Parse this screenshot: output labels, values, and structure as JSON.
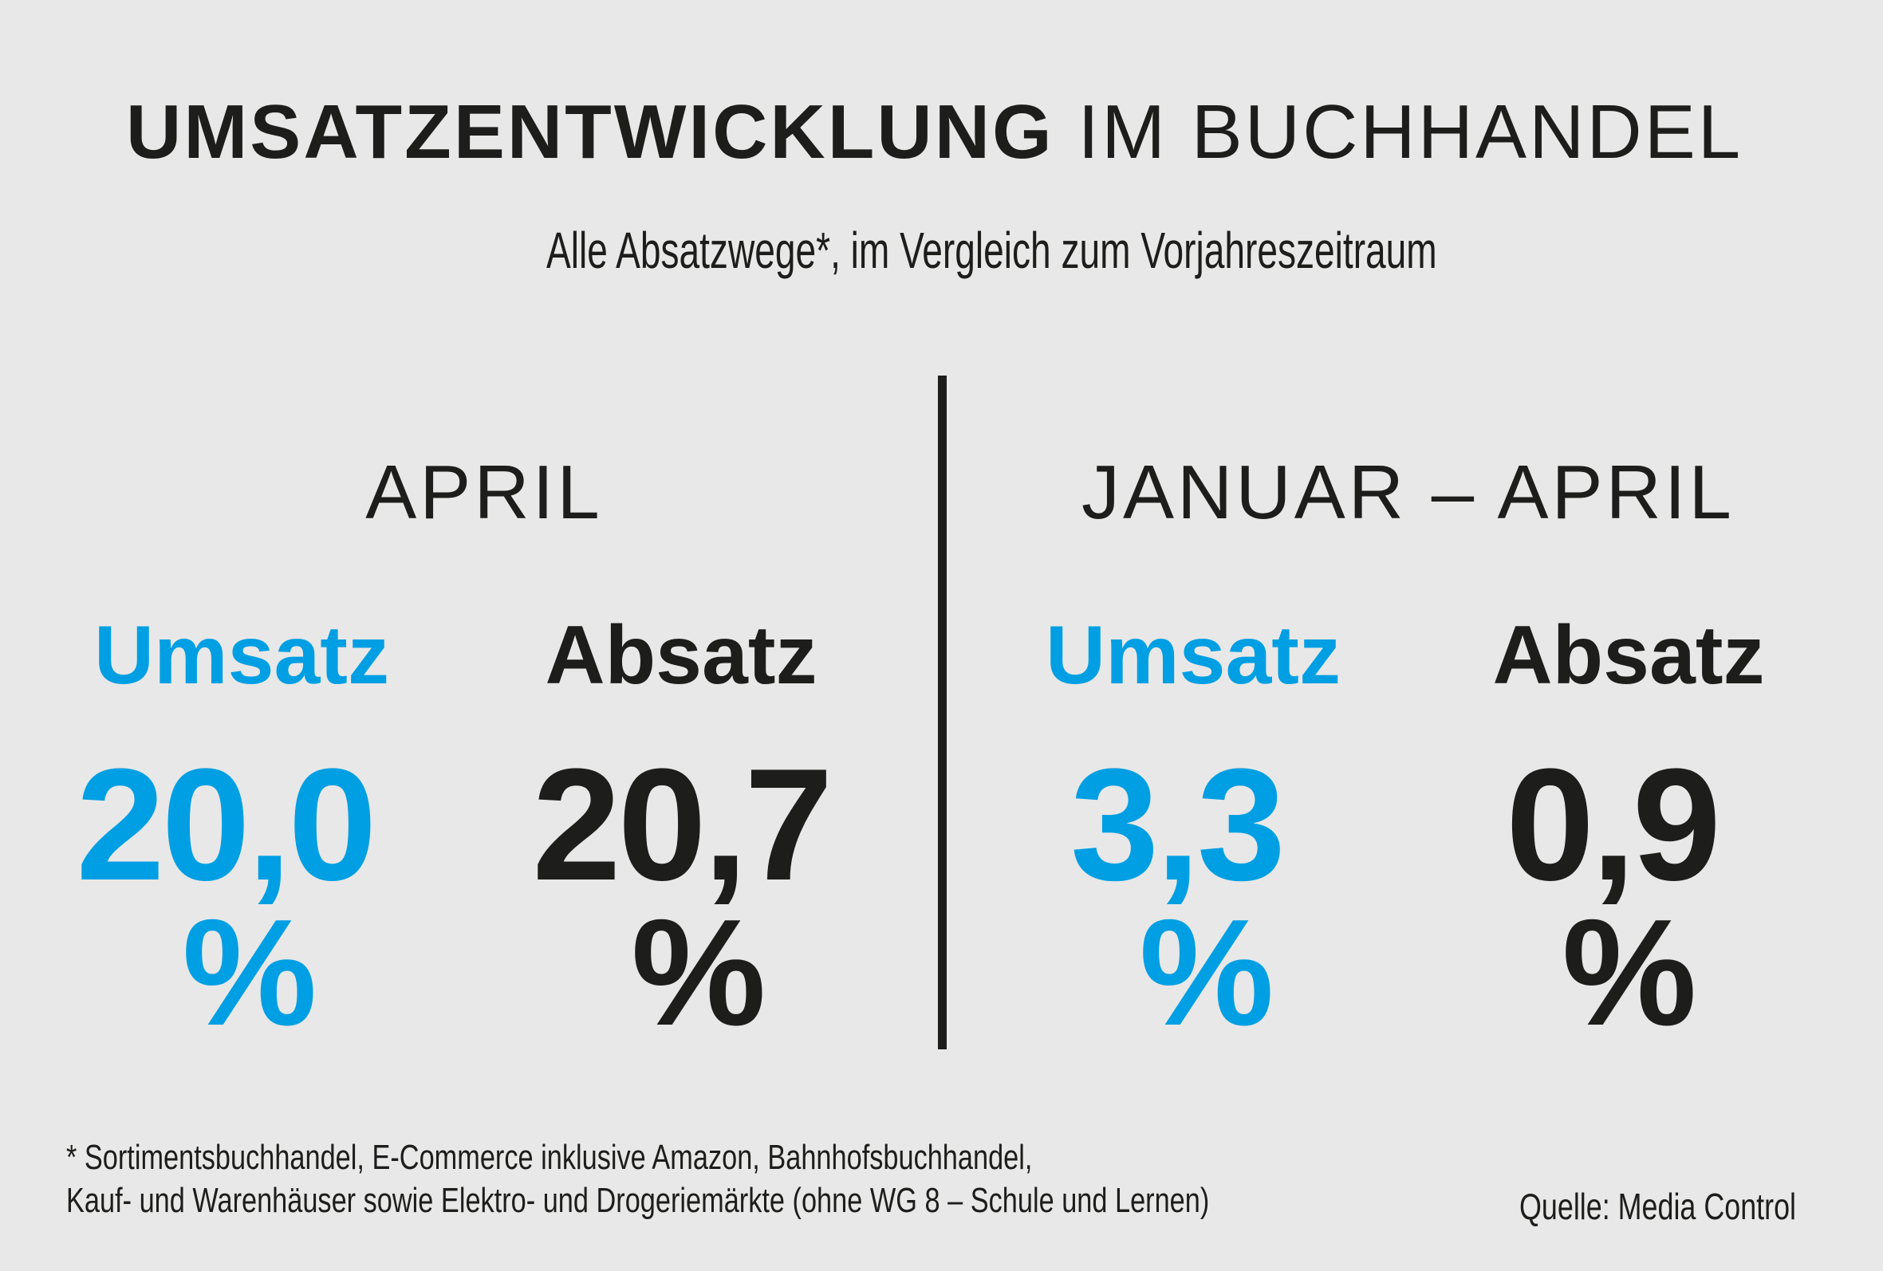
{
  "title": {
    "bold": "UMSATZENTWICKLUNG",
    "light": "IM BUCHHANDEL"
  },
  "subtitle": "Alle Absatzwege*, im Vergleich zum Vorjahreszeitraum",
  "colors": {
    "accent": "#009fe3",
    "dark": "#1d1d1b",
    "background": "#e8e8e8"
  },
  "periods": [
    {
      "label": "APRIL",
      "umsatz_label": "Umsatz",
      "umsatz_value": "20,0",
      "absatz_label": "Absatz",
      "absatz_value": "20,7",
      "unit": "%"
    },
    {
      "label": "JANUAR – APRIL",
      "umsatz_label": "Umsatz",
      "umsatz_value": "3,3",
      "absatz_label": "Absatz",
      "absatz_value": "0,9",
      "unit": "%"
    }
  ],
  "footnote": {
    "line1": "* Sortimentsbuchhandel, E-Commerce inklusive Amazon, Bahnhofsbuchhandel,",
    "line2": "Kauf- und Warenhäuser sowie Elektro- und Drogeriemärkte (ohne WG 8 – Schule und Lernen)"
  },
  "source": "Quelle: Media Control"
}
